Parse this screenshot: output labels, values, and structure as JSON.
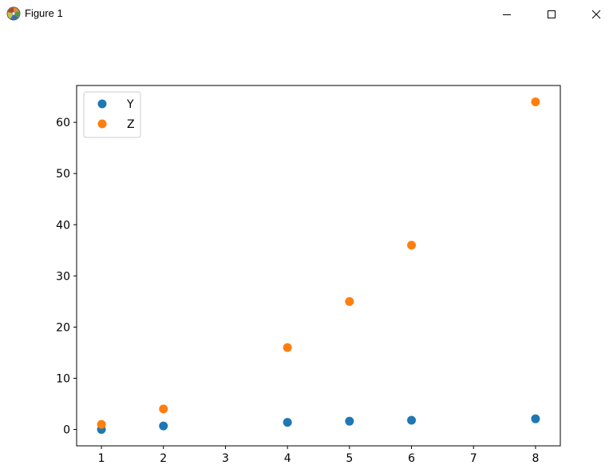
{
  "window": {
    "title": "Figure 1",
    "icon": "matplotlib-logo-icon",
    "controls": [
      "minimize-icon",
      "maximize-icon",
      "close-icon"
    ]
  },
  "chart_data": {
    "type": "scatter",
    "title": "",
    "xlabel": "",
    "ylabel": "",
    "xlim": [
      0.6,
      8.4
    ],
    "ylim": [
      -3.2,
      67.2
    ],
    "xticks": [
      1,
      2,
      3,
      4,
      5,
      6,
      7,
      8
    ],
    "yticks": [
      0,
      10,
      20,
      30,
      40,
      50,
      60
    ],
    "grid": false,
    "legend_position": "upper left",
    "series": [
      {
        "name": "Y",
        "color": "#1f77b4",
        "x": [
          1,
          2,
          4,
          5,
          6,
          8
        ],
        "y": [
          0,
          0.69,
          1.39,
          1.61,
          1.79,
          2.08
        ]
      },
      {
        "name": "Z",
        "color": "#ff7f0e",
        "x": [
          1,
          2,
          4,
          5,
          6,
          8
        ],
        "y": [
          1,
          4,
          16,
          25,
          36,
          64
        ]
      }
    ]
  }
}
